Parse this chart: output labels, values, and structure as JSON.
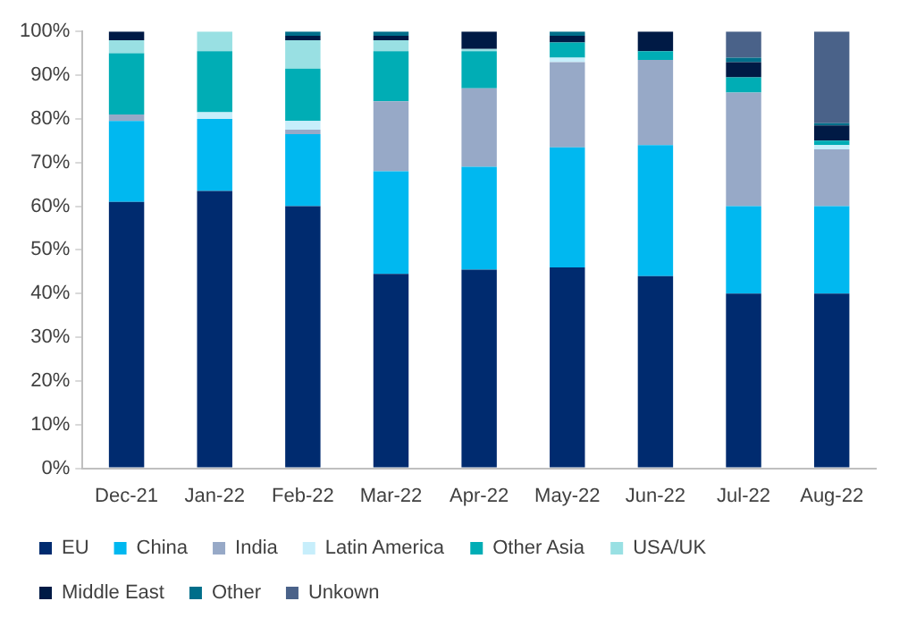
{
  "chart_data": {
    "type": "bar",
    "stacked": true,
    "categories": [
      "Dec-21",
      "Jan-22",
      "Feb-22",
      "Mar-22",
      "Apr-22",
      "May-22",
      "Jun-22",
      "Jul-22",
      "Aug-22"
    ],
    "series": [
      {
        "name": "EU",
        "color": "#002b6f",
        "values": [
          61,
          63.5,
          60,
          44.5,
          45.5,
          46,
          44,
          40,
          40
        ]
      },
      {
        "name": "China",
        "color": "#00b8f0",
        "values": [
          18.5,
          16.5,
          16.5,
          23.5,
          23.5,
          27.5,
          30,
          20,
          20
        ]
      },
      {
        "name": "India",
        "color": "#97a9c7",
        "values": [
          1.5,
          0,
          1,
          16,
          18,
          19.5,
          19.5,
          26,
          13
        ]
      },
      {
        "name": "Latin America",
        "color": "#c7eefb",
        "values": [
          null,
          1.5,
          2,
          0,
          0,
          1,
          null,
          null,
          1
        ]
      },
      {
        "name": "Other Asia",
        "color": "#00adb5",
        "values": [
          14,
          14,
          12,
          11.5,
          8.5,
          3.5,
          2,
          3.5,
          1
        ]
      },
      {
        "name": "USA/UK",
        "color": "#99e0e3",
        "values": [
          3,
          4.5,
          6.5,
          2.5,
          0.5,
          0,
          0,
          0,
          0
        ]
      },
      {
        "name": "Middle East",
        "color": "#001a45",
        "values": [
          2,
          0,
          1,
          1,
          4,
          1.5,
          4.5,
          3.5,
          3.5
        ]
      },
      {
        "name": "Other",
        "color": "#006e8a",
        "values": [
          0,
          0,
          1,
          1,
          0,
          1,
          0,
          1,
          0.5
        ]
      },
      {
        "name": "Unkown",
        "color": "#4a6289",
        "values": [
          0,
          0,
          0,
          0,
          0,
          0,
          0,
          6,
          21
        ]
      }
    ],
    "ylim": [
      0,
      100
    ],
    "yticks": [
      {
        "value": 0,
        "label": "0%"
      },
      {
        "value": 10,
        "label": "10%"
      },
      {
        "value": 20,
        "label": "20%"
      },
      {
        "value": 30,
        "label": "30%"
      },
      {
        "value": 40,
        "label": "40%"
      },
      {
        "value": 50,
        "label": "50%"
      },
      {
        "value": 60,
        "label": "60%"
      },
      {
        "value": 70,
        "label": "70%"
      },
      {
        "value": 80,
        "label": "80%"
      },
      {
        "value": 90,
        "label": "90%"
      },
      {
        "value": 100,
        "label": "100%"
      }
    ],
    "grid": false,
    "legend": "bottom"
  }
}
